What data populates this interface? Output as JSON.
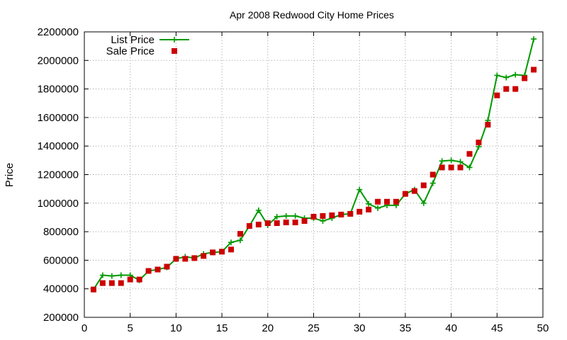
{
  "chart_data": {
    "type": "line",
    "title": "Apr 2008 Redwood City Home Prices",
    "xlabel": "",
    "ylabel": "Price",
    "xlim": [
      0,
      50
    ],
    "ylim": [
      200000,
      2200000
    ],
    "x_ticks": [
      "0",
      "5",
      "10",
      "15",
      "20",
      "25",
      "30",
      "35",
      "40",
      "45",
      "50"
    ],
    "y_ticks": [
      "200000",
      "400000",
      "600000",
      "800000",
      "1000000",
      "1200000",
      "1400000",
      "1600000",
      "1800000",
      "2000000",
      "2200000"
    ],
    "grid": true,
    "legend_position": "top-left",
    "series": [
      {
        "name": "List Price",
        "style": "line-with-plus-markers",
        "color": "#009900",
        "x": [
          1,
          2,
          3,
          4,
          5,
          6,
          7,
          8,
          9,
          10,
          11,
          12,
          13,
          14,
          15,
          16,
          17,
          18,
          19,
          20,
          21,
          22,
          23,
          24,
          25,
          26,
          27,
          28,
          29,
          30,
          31,
          32,
          33,
          34,
          35,
          36,
          37,
          38,
          39,
          40,
          41,
          42,
          43,
          44,
          45,
          46,
          47,
          48,
          49
        ],
        "y": [
          395000,
          495000,
          490000,
          495000,
          495000,
          460000,
          525000,
          535000,
          550000,
          610000,
          625000,
          615000,
          645000,
          655000,
          660000,
          725000,
          740000,
          840000,
          950000,
          845000,
          905000,
          910000,
          910000,
          895000,
          895000,
          875000,
          895000,
          920000,
          925000,
          1095000,
          995000,
          965000,
          985000,
          985000,
          1065000,
          1095000,
          1000000,
          1140000,
          1295000,
          1300000,
          1290000,
          1250000,
          1395000,
          1580000,
          1895000,
          1880000,
          1900000,
          1895000,
          2150000
        ]
      },
      {
        "name": "Sale Price",
        "style": "square-markers",
        "color": "#cc0000",
        "x": [
          1,
          2,
          3,
          4,
          5,
          6,
          7,
          8,
          9,
          10,
          11,
          12,
          13,
          14,
          15,
          16,
          17,
          18,
          19,
          20,
          21,
          22,
          23,
          24,
          25,
          26,
          27,
          28,
          29,
          30,
          31,
          32,
          33,
          34,
          35,
          36,
          37,
          38,
          39,
          40,
          41,
          42,
          43,
          44,
          45,
          46,
          47,
          48,
          49
        ],
        "y": [
          395000,
          440000,
          440000,
          440000,
          465000,
          465000,
          525000,
          535000,
          555000,
          610000,
          610000,
          615000,
          630000,
          655000,
          660000,
          675000,
          785000,
          840000,
          850000,
          860000,
          860000,
          865000,
          865000,
          875000,
          905000,
          910000,
          915000,
          920000,
          925000,
          940000,
          955000,
          1010000,
          1010000,
          1010000,
          1065000,
          1085000,
          1125000,
          1200000,
          1250000,
          1250000,
          1250000,
          1345000,
          1425000,
          1550000,
          1755000,
          1800000,
          1800000,
          1875000,
          1935000
        ]
      }
    ]
  }
}
